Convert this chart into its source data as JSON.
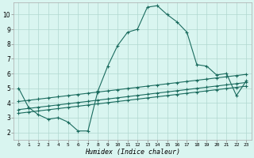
{
  "xlabel": "Humidex (Indice chaleur)",
  "bg_color": "#d9f5f0",
  "line_color": "#1a6b5e",
  "grid_color": "#b0d8d0",
  "x_ticks": [
    0,
    1,
    2,
    3,
    4,
    5,
    6,
    7,
    8,
    9,
    10,
    11,
    12,
    13,
    14,
    15,
    16,
    17,
    18,
    19,
    20,
    21,
    22,
    23
  ],
  "y_ticks": [
    2,
    3,
    4,
    5,
    6,
    7,
    8,
    9,
    10
  ],
  "ylim": [
    1.5,
    10.8
  ],
  "xlim": [
    -0.5,
    23.5
  ],
  "curve1_y": [
    5.0,
    3.7,
    3.2,
    2.9,
    3.0,
    2.7,
    2.1,
    2.1,
    4.8,
    6.5,
    7.9,
    8.8,
    9.0,
    10.5,
    10.6,
    10.0,
    9.5,
    8.8,
    6.6,
    6.5,
    5.9,
    6.0,
    4.5,
    5.5
  ],
  "curve2_y": [
    3.3,
    3.38,
    3.46,
    3.54,
    3.62,
    3.7,
    3.78,
    3.86,
    3.94,
    4.02,
    4.1,
    4.18,
    4.26,
    4.34,
    4.42,
    4.5,
    4.58,
    4.66,
    4.74,
    4.82,
    4.9,
    4.98,
    5.06,
    5.14
  ],
  "curve3_y": [
    3.55,
    3.63,
    3.71,
    3.79,
    3.87,
    3.95,
    4.03,
    4.11,
    4.19,
    4.27,
    4.35,
    4.43,
    4.51,
    4.59,
    4.67,
    4.75,
    4.83,
    4.91,
    4.99,
    5.07,
    5.15,
    5.23,
    5.31,
    5.39
  ],
  "curve4_y": [
    4.1,
    4.18,
    4.26,
    4.34,
    4.42,
    4.5,
    4.58,
    4.66,
    4.74,
    4.82,
    4.9,
    4.98,
    5.06,
    5.14,
    5.22,
    5.3,
    5.38,
    5.46,
    5.54,
    5.62,
    5.7,
    5.78,
    5.86,
    5.94
  ]
}
